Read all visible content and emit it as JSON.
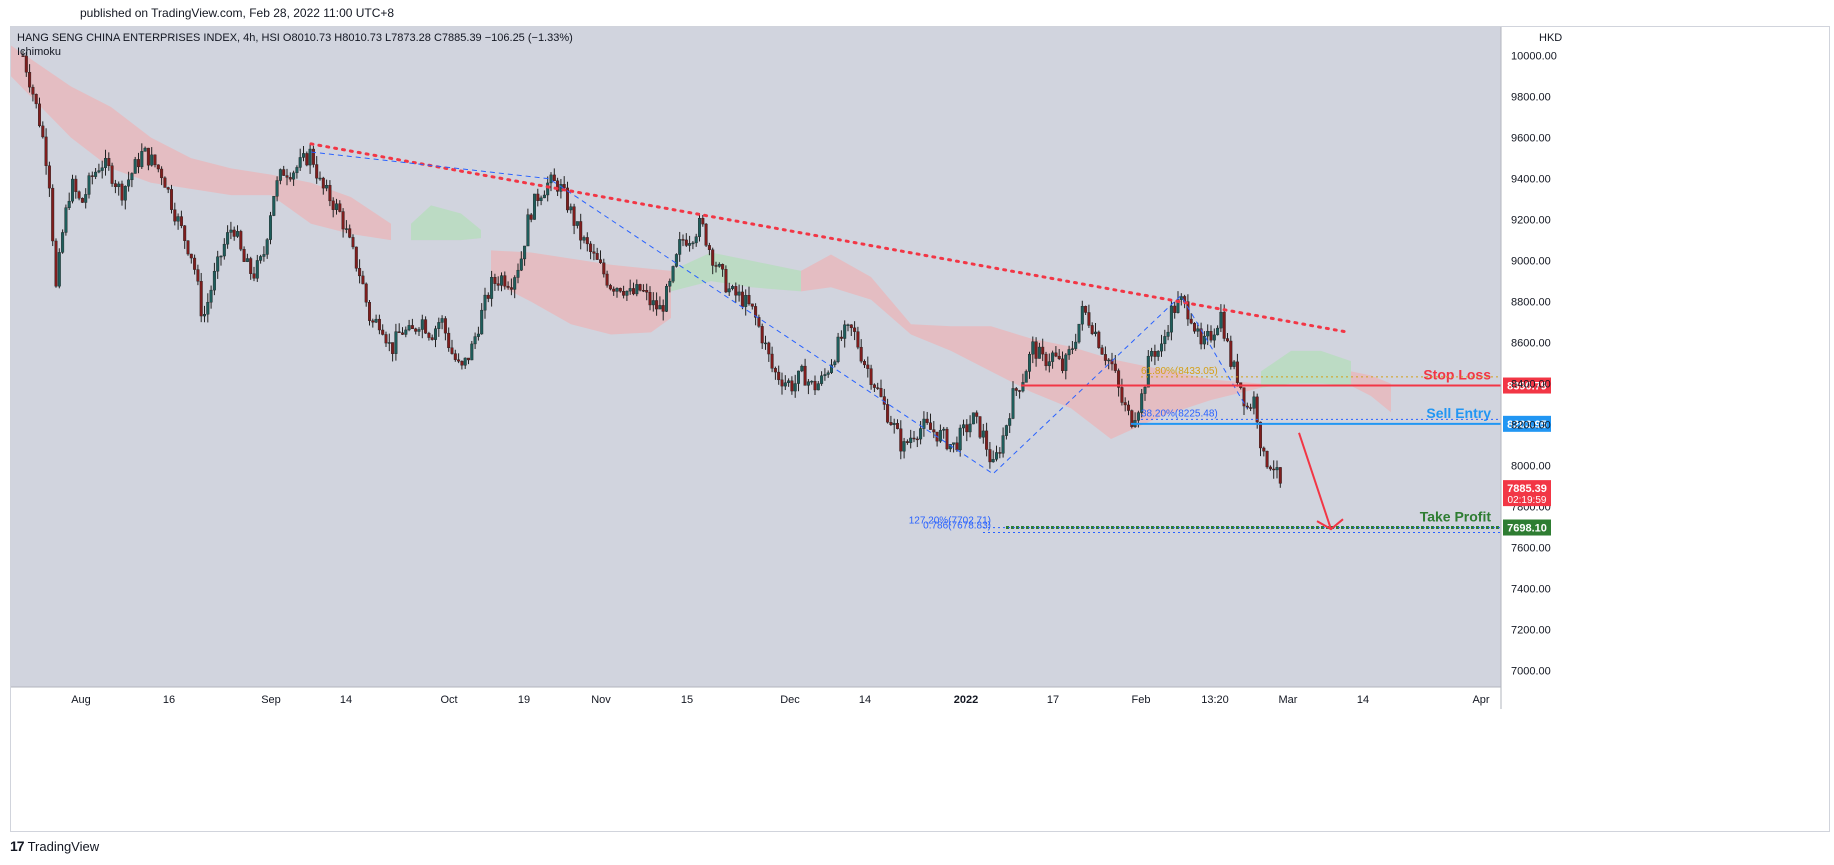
{
  "published": "published on TradingView.com, Feb 28, 2022 11:00 UTC+8",
  "footer_brand": "TradingView",
  "colors": {
    "background": "#d1d4de",
    "up": "#1e5d5b",
    "down": "#7f1d1d",
    "trendline": "#f23645",
    "stop_loss": "#f23645",
    "sell_entry": "#2196f3",
    "take_profit": "#2e7d32",
    "fib": "#2962ff",
    "cloud_red": "#e8b8bd",
    "cloud_green": "#b8dcc0"
  },
  "chart_data": {
    "type": "candlestick",
    "symbol_line": "HANG SENG CHINA ENTERPRISES INDEX, 4h, HSI  O8010.73  H8010.73  L7873.28  C7885.39  −106.25 (−1.33%)",
    "indicator": "Ichimoku",
    "currency": "HKD",
    "ylim": [
      6920,
      10140
    ],
    "yticks": [
      "10000.00",
      "9800.00",
      "9600.00",
      "9400.00",
      "9200.00",
      "9000.00",
      "8800.00",
      "8600.00",
      "8400.00",
      "8200.00",
      "8000.00",
      "7800.00",
      "7600.00",
      "7400.00",
      "7200.00",
      "7000.00"
    ],
    "xticks": [
      {
        "label": "Aug",
        "t": 70,
        "bold": false
      },
      {
        "label": "16",
        "t": 158,
        "bold": false
      },
      {
        "label": "Sep",
        "t": 260,
        "bold": false
      },
      {
        "label": "14",
        "t": 335,
        "bold": false
      },
      {
        "label": "Oct",
        "t": 438,
        "bold": false
      },
      {
        "label": "19",
        "t": 513,
        "bold": false
      },
      {
        "label": "Nov",
        "t": 590,
        "bold": false
      },
      {
        "label": "15",
        "t": 676,
        "bold": false
      },
      {
        "label": "Dec",
        "t": 779,
        "bold": false
      },
      {
        "label": "14",
        "t": 854,
        "bold": false
      },
      {
        "label": "2022",
        "t": 955,
        "bold": true
      },
      {
        "label": "17",
        "t": 1042,
        "bold": false
      },
      {
        "label": "Feb",
        "t": 1130,
        "bold": false
      },
      {
        "label": "13:20",
        "t": 1204,
        "bold": false
      },
      {
        "label": "Mar",
        "t": 1277,
        "bold": false
      },
      {
        "label": "14",
        "t": 1352,
        "bold": false
      },
      {
        "label": "Apr",
        "t": 1470,
        "bold": false
      }
    ],
    "price_path": [
      [
        12,
        10000
      ],
      [
        20,
        9860
      ],
      [
        30,
        9650
      ],
      [
        38,
        9420
      ],
      [
        45,
        8860
      ],
      [
        52,
        9150
      ],
      [
        60,
        9380
      ],
      [
        70,
        9270
      ],
      [
        80,
        9400
      ],
      [
        90,
        9480
      ],
      [
        100,
        9430
      ],
      [
        110,
        9330
      ],
      [
        120,
        9420
      ],
      [
        132,
        9530
      ],
      [
        142,
        9480
      ],
      [
        152,
        9420
      ],
      [
        162,
        9260
      ],
      [
        172,
        9130
      ],
      [
        182,
        9010
      ],
      [
        192,
        8710
      ],
      [
        202,
        8900
      ],
      [
        212,
        9060
      ],
      [
        222,
        9180
      ],
      [
        232,
        9000
      ],
      [
        242,
        8930
      ],
      [
        252,
        9010
      ],
      [
        262,
        9320
      ],
      [
        272,
        9440
      ],
      [
        282,
        9440
      ],
      [
        292,
        9480
      ],
      [
        300,
        9530
      ],
      [
        310,
        9360
      ],
      [
        320,
        9300
      ],
      [
        330,
        9220
      ],
      [
        340,
        9060
      ],
      [
        350,
        8920
      ],
      [
        360,
        8690
      ],
      [
        370,
        8710
      ],
      [
        380,
        8560
      ],
      [
        390,
        8660
      ],
      [
        400,
        8640
      ],
      [
        410,
        8720
      ],
      [
        420,
        8640
      ],
      [
        430,
        8720
      ],
      [
        440,
        8560
      ],
      [
        450,
        8460
      ],
      [
        460,
        8560
      ],
      [
        470,
        8730
      ],
      [
        480,
        8880
      ],
      [
        490,
        8920
      ],
      [
        500,
        8900
      ],
      [
        510,
        9010
      ],
      [
        518,
        9220
      ],
      [
        528,
        9330
      ],
      [
        538,
        9380
      ],
      [
        548,
        9370
      ],
      [
        558,
        9260
      ],
      [
        568,
        9130
      ],
      [
        578,
        9050
      ],
      [
        590,
        8960
      ],
      [
        600,
        8880
      ],
      [
        610,
        8880
      ],
      [
        620,
        8830
      ],
      [
        630,
        8860
      ],
      [
        640,
        8790
      ],
      [
        650,
        8760
      ],
      [
        660,
        8890
      ],
      [
        670,
        9100
      ],
      [
        680,
        9120
      ],
      [
        690,
        9180
      ],
      [
        700,
        9040
      ],
      [
        710,
        8930
      ],
      [
        720,
        8840
      ],
      [
        730,
        8820
      ],
      [
        742,
        8750
      ],
      [
        752,
        8620
      ],
      [
        762,
        8460
      ],
      [
        772,
        8420
      ],
      [
        782,
        8390
      ],
      [
        792,
        8450
      ],
      [
        802,
        8380
      ],
      [
        812,
        8420
      ],
      [
        822,
        8530
      ],
      [
        832,
        8640
      ],
      [
        842,
        8660
      ],
      [
        852,
        8520
      ],
      [
        862,
        8420
      ],
      [
        872,
        8300
      ],
      [
        882,
        8200
      ],
      [
        892,
        8080
      ],
      [
        902,
        8160
      ],
      [
        912,
        8190
      ],
      [
        922,
        8170
      ],
      [
        932,
        8140
      ],
      [
        942,
        8090
      ],
      [
        952,
        8160
      ],
      [
        962,
        8230
      ],
      [
        972,
        8150
      ],
      [
        982,
        7990
      ],
      [
        992,
        8140
      ],
      [
        1002,
        8340
      ],
      [
        1012,
        8430
      ],
      [
        1022,
        8580
      ],
      [
        1032,
        8510
      ],
      [
        1042,
        8540
      ],
      [
        1052,
        8470
      ],
      [
        1062,
        8590
      ],
      [
        1072,
        8760
      ],
      [
        1082,
        8680
      ],
      [
        1092,
        8560
      ],
      [
        1102,
        8480
      ],
      [
        1110,
        8320
      ],
      [
        1120,
        8220
      ],
      [
        1130,
        8320
      ],
      [
        1140,
        8560
      ],
      [
        1150,
        8560
      ],
      [
        1160,
        8750
      ],
      [
        1170,
        8800
      ],
      [
        1180,
        8740
      ],
      [
        1190,
        8570
      ],
      [
        1200,
        8640
      ],
      [
        1210,
        8740
      ],
      [
        1220,
        8500
      ],
      [
        1228,
        8420
      ],
      [
        1236,
        8280
      ],
      [
        1244,
        8330
      ],
      [
        1252,
        8030
      ],
      [
        1262,
        8010
      ],
      [
        1270,
        7885
      ]
    ],
    "ichimoku_cloud": [
      {
        "color": "red",
        "t0": 0,
        "t1": 380,
        "top": [
          [
            0,
            10050
          ],
          [
            60,
            9850
          ],
          [
            100,
            9750
          ],
          [
            140,
            9600
          ],
          [
            180,
            9500
          ],
          [
            220,
            9450
          ],
          [
            260,
            9420
          ],
          [
            300,
            9380
          ],
          [
            340,
            9310
          ],
          [
            380,
            9180
          ]
        ],
        "bottom": [
          [
            0,
            9900
          ],
          [
            60,
            9600
          ],
          [
            100,
            9450
          ],
          [
            140,
            9380
          ],
          [
            180,
            9350
          ],
          [
            220,
            9320
          ],
          [
            260,
            9320
          ],
          [
            300,
            9180
          ],
          [
            340,
            9130
          ],
          [
            380,
            9100
          ]
        ]
      },
      {
        "color": "green",
        "t0": 400,
        "t1": 470,
        "top": [
          [
            400,
            9180
          ],
          [
            420,
            9270
          ],
          [
            450,
            9230
          ],
          [
            470,
            9150
          ]
        ],
        "bottom": [
          [
            400,
            9100
          ],
          [
            420,
            9100
          ],
          [
            450,
            9100
          ],
          [
            470,
            9110
          ]
        ]
      },
      {
        "color": "red",
        "t0": 480,
        "t1": 660,
        "top": [
          [
            480,
            9050
          ],
          [
            520,
            9040
          ],
          [
            560,
            9010
          ],
          [
            600,
            8980
          ],
          [
            640,
            8960
          ],
          [
            660,
            8950
          ]
        ],
        "bottom": [
          [
            480,
            8900
          ],
          [
            520,
            8800
          ],
          [
            560,
            8690
          ],
          [
            600,
            8640
          ],
          [
            640,
            8650
          ],
          [
            660,
            8720
          ]
        ]
      },
      {
        "color": "green",
        "t0": 660,
        "t1": 790,
        "top": [
          [
            660,
            8950
          ],
          [
            700,
            9040
          ],
          [
            740,
            9000
          ],
          [
            790,
            8950
          ]
        ],
        "bottom": [
          [
            660,
            8850
          ],
          [
            700,
            8900
          ],
          [
            740,
            8870
          ],
          [
            790,
            8850
          ]
        ]
      },
      {
        "color": "red",
        "t0": 790,
        "t1": 1250,
        "top": [
          [
            790,
            8950
          ],
          [
            820,
            9030
          ],
          [
            860,
            8920
          ],
          [
            900,
            8690
          ],
          [
            940,
            8680
          ],
          [
            980,
            8680
          ],
          [
            1020,
            8620
          ],
          [
            1060,
            8580
          ],
          [
            1100,
            8520
          ],
          [
            1150,
            8470
          ],
          [
            1200,
            8420
          ],
          [
            1250,
            8400
          ]
        ],
        "bottom": [
          [
            790,
            8850
          ],
          [
            820,
            8870
          ],
          [
            860,
            8810
          ],
          [
            900,
            8640
          ],
          [
            940,
            8560
          ],
          [
            980,
            8460
          ],
          [
            1020,
            8360
          ],
          [
            1060,
            8280
          ],
          [
            1100,
            8130
          ],
          [
            1150,
            8240
          ],
          [
            1200,
            8320
          ],
          [
            1250,
            8380
          ]
        ]
      },
      {
        "color": "green",
        "t0": 1250,
        "t1": 1340,
        "top": [
          [
            1250,
            8460
          ],
          [
            1280,
            8560
          ],
          [
            1310,
            8560
          ],
          [
            1340,
            8510
          ]
        ],
        "bottom": [
          [
            1250,
            8380
          ],
          [
            1280,
            8400
          ],
          [
            1310,
            8400
          ],
          [
            1340,
            8390
          ]
        ]
      },
      {
        "color": "red",
        "t0": 1340,
        "t1": 1380,
        "top": [
          [
            1340,
            8460
          ],
          [
            1360,
            8440
          ],
          [
            1380,
            8400
          ]
        ],
        "bottom": [
          [
            1340,
            8390
          ],
          [
            1360,
            8340
          ],
          [
            1380,
            8260
          ]
        ]
      }
    ],
    "trendline": {
      "t0": 300,
      "p0": 9570,
      "t1": 1338,
      "p1": 8650
    },
    "zigzag": [
      [
        300,
        9530
      ],
      [
        538,
        9400
      ],
      [
        982,
        7960
      ],
      [
        1170,
        8830
      ],
      [
        1236,
        8280
      ]
    ],
    "levels": [
      {
        "name": "Stop Loss",
        "price": 8390.79,
        "label": "8390.79",
        "t0": 1010
      },
      {
        "name": "Sell Entry",
        "price": 8203.95,
        "label": "8203.95",
        "t0": 1120
      },
      {
        "name": "Take Profit",
        "price": 7698.1,
        "label": "7698.10",
        "t0": 995
      }
    ],
    "fib_labels": [
      {
        "text": "61.80%(8433.05)",
        "price": 8433.05,
        "t": 1130,
        "color": "orange"
      },
      {
        "text": "38.20%(8225.48)",
        "price": 8225.48,
        "t": 1130,
        "color": "blue"
      },
      {
        "text": "127.20%(7702.71)",
        "price": 7702.71,
        "t": 980,
        "color": "blue",
        "anchor": "end"
      },
      {
        "text": "0.786(7678.83)",
        "price": 7678.83,
        "t": 980,
        "color": "blue",
        "anchor": "end"
      }
    ],
    "arrow": {
      "t0": 1288,
      "p0": 8160,
      "t1": 1320,
      "p1": 7690
    },
    "last_price": {
      "label": "7885.39",
      "countdown": "02:19:59",
      "price": 7885.39
    }
  }
}
